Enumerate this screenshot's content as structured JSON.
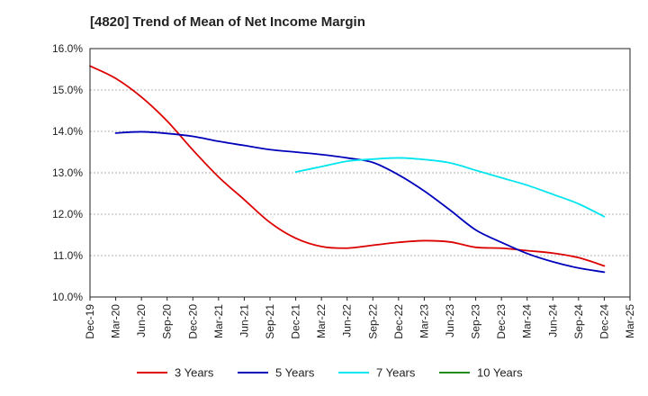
{
  "chart_data": {
    "type": "line",
    "title": "[4820]  Trend of Mean of Net Income Margin",
    "xlabel": "",
    "ylabel": "",
    "y_format": "percent_1dp",
    "ylim": [
      10.0,
      16.0
    ],
    "y_ticks": [
      10.0,
      11.0,
      12.0,
      13.0,
      14.0,
      15.0,
      16.0
    ],
    "y_tick_labels": [
      "10.0%",
      "11.0%",
      "12.0%",
      "13.0%",
      "14.0%",
      "15.0%",
      "16.0%"
    ],
    "x_ticks": [
      "Dec-19",
      "Mar-20",
      "Jun-20",
      "Sep-20",
      "Dec-20",
      "Mar-21",
      "Jun-21",
      "Sep-21",
      "Dec-21",
      "Mar-22",
      "Jun-22",
      "Sep-22",
      "Dec-22",
      "Mar-23",
      "Jun-23",
      "Sep-23",
      "Dec-23",
      "Mar-24",
      "Jun-24",
      "Sep-24",
      "Dec-24",
      "Mar-25"
    ],
    "grid": "horizontal-dashed",
    "legend_position": "bottom",
    "series": [
      {
        "name": "3 Years",
        "color": "#dd0000",
        "points": [
          [
            "Dec-19",
            15.58
          ],
          [
            "Mar-20",
            15.28
          ],
          [
            "Jun-20",
            14.83
          ],
          [
            "Sep-20",
            14.25
          ],
          [
            "Dec-20",
            13.55
          ],
          [
            "Mar-21",
            12.9
          ],
          [
            "Jun-21",
            12.35
          ],
          [
            "Sep-21",
            11.8
          ],
          [
            "Dec-21",
            11.42
          ],
          [
            "Mar-22",
            11.22
          ],
          [
            "Jun-22",
            11.18
          ],
          [
            "Sep-22",
            11.25
          ],
          [
            "Dec-22",
            11.32
          ],
          [
            "Mar-23",
            11.36
          ],
          [
            "Jun-23",
            11.33
          ],
          [
            "Sep-23",
            11.2
          ],
          [
            "Dec-23",
            11.18
          ],
          [
            "Mar-24",
            11.12
          ],
          [
            "Jun-24",
            11.06
          ],
          [
            "Sep-24",
            10.95
          ],
          [
            "Dec-24",
            10.75
          ]
        ]
      },
      {
        "name": "5 Years",
        "color": "#0000bb",
        "points": [
          [
            "Mar-20",
            13.96
          ],
          [
            "Jun-20",
            13.99
          ],
          [
            "Sep-20",
            13.95
          ],
          [
            "Dec-20",
            13.88
          ],
          [
            "Mar-21",
            13.76
          ],
          [
            "Jun-21",
            13.66
          ],
          [
            "Sep-21",
            13.56
          ],
          [
            "Dec-21",
            13.5
          ],
          [
            "Mar-22",
            13.44
          ],
          [
            "Jun-22",
            13.36
          ],
          [
            "Sep-22",
            13.25
          ],
          [
            "Dec-22",
            12.95
          ],
          [
            "Mar-23",
            12.56
          ],
          [
            "Jun-23",
            12.1
          ],
          [
            "Sep-23",
            11.62
          ],
          [
            "Dec-23",
            11.32
          ],
          [
            "Mar-24",
            11.05
          ],
          [
            "Jun-24",
            10.85
          ],
          [
            "Sep-24",
            10.7
          ],
          [
            "Dec-24",
            10.6
          ]
        ]
      },
      {
        "name": "7 Years",
        "color": "#00e5ee",
        "points": [
          [
            "Dec-21",
            13.02
          ],
          [
            "Mar-22",
            13.15
          ],
          [
            "Jun-22",
            13.28
          ],
          [
            "Sep-22",
            13.33
          ],
          [
            "Dec-22",
            13.36
          ],
          [
            "Mar-23",
            13.32
          ],
          [
            "Jun-23",
            13.24
          ],
          [
            "Sep-23",
            13.06
          ],
          [
            "Dec-23",
            12.88
          ],
          [
            "Mar-24",
            12.7
          ],
          [
            "Jun-24",
            12.48
          ],
          [
            "Sep-24",
            12.25
          ],
          [
            "Dec-24",
            11.94
          ]
        ]
      },
      {
        "name": "10 Years",
        "color": "#228b22",
        "points": []
      }
    ]
  }
}
